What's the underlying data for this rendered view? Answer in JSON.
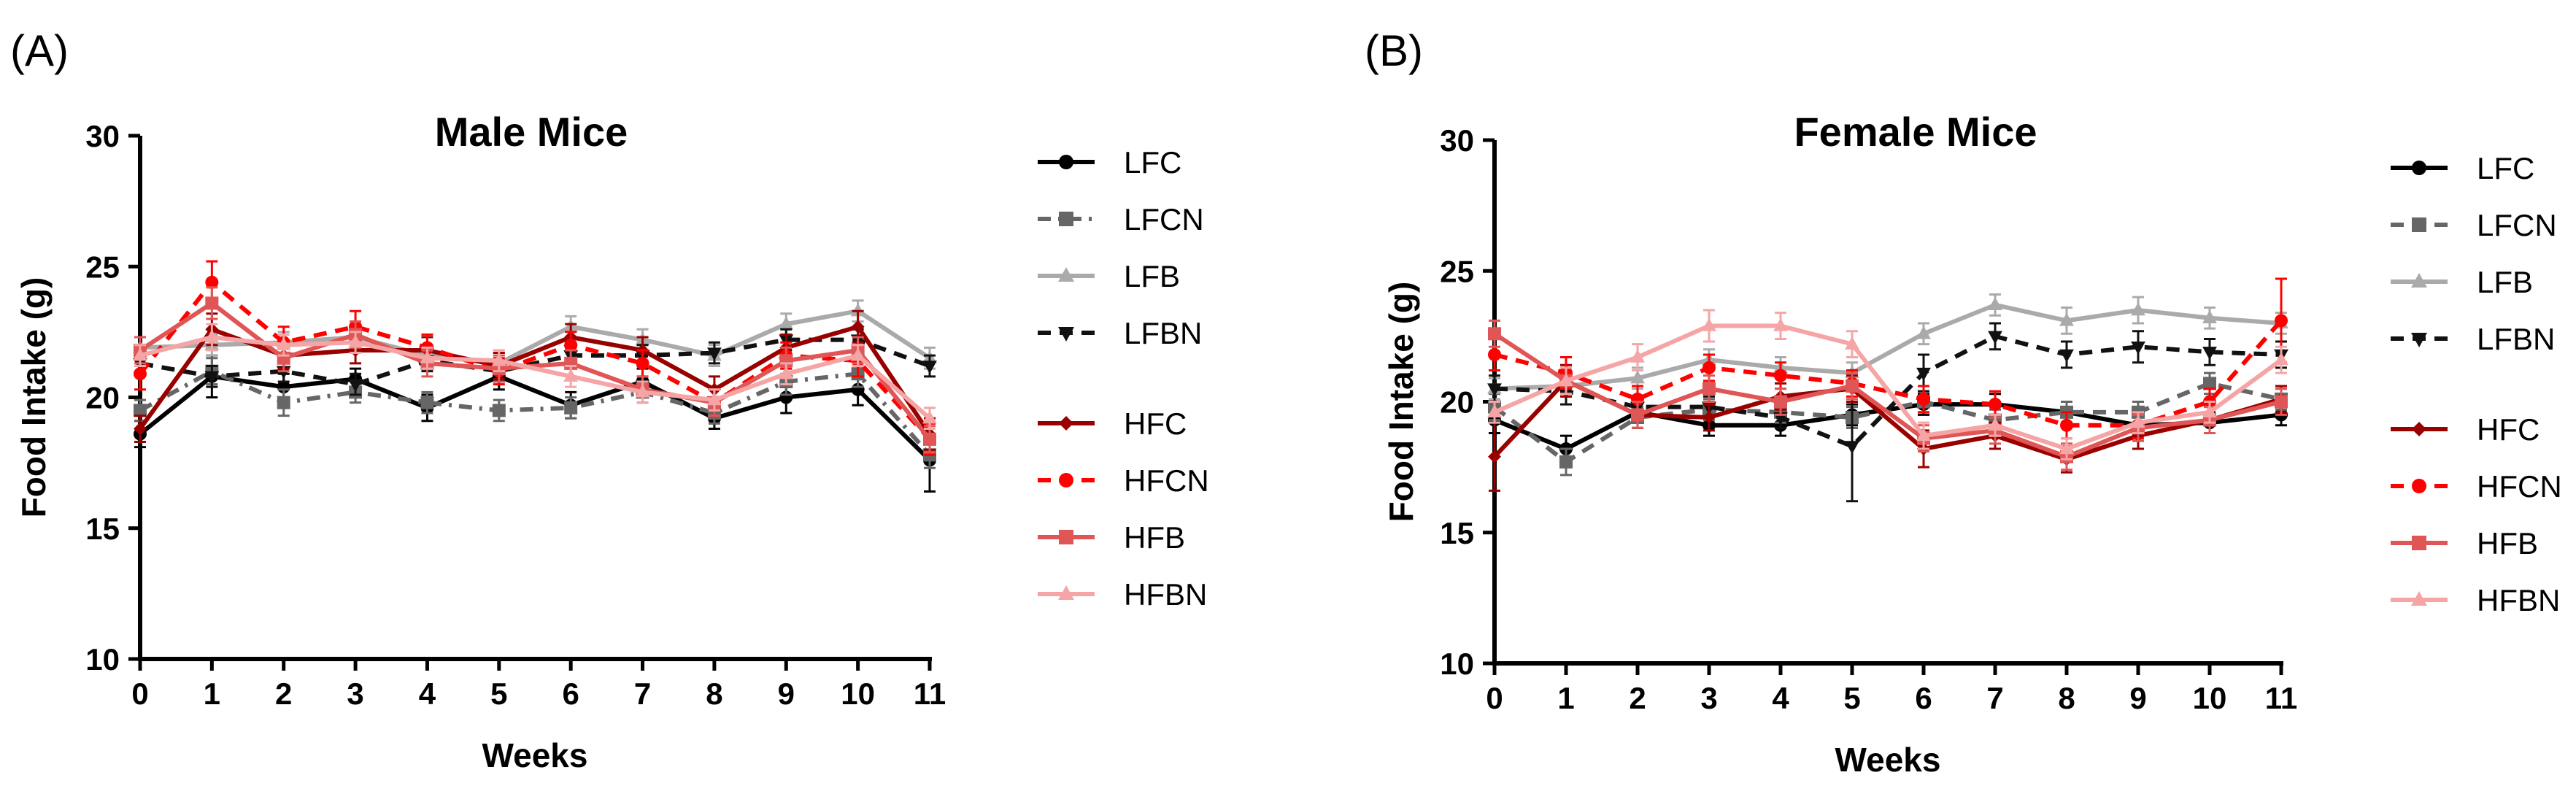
{
  "chart_data": [
    {
      "panel": "(A)",
      "type": "line",
      "title": "Male Mice",
      "xlabel": "Weeks",
      "ylabel": "Food Intake (g)",
      "x": [
        0,
        1,
        2,
        3,
        4,
        5,
        6,
        7,
        8,
        9,
        10,
        11
      ],
      "ylim": [
        10,
        30
      ],
      "yticks": [
        10,
        15,
        20,
        25,
        30
      ],
      "series": [
        {
          "name": "LFC",
          "color": "#000000",
          "dash": "solid",
          "marker": "circle",
          "values": [
            18.6,
            20.8,
            20.4,
            20.7,
            19.6,
            20.8,
            19.7,
            20.6,
            19.2,
            20.0,
            20.3,
            17.6
          ],
          "err": [
            0.5,
            0.8,
            0.5,
            0.4,
            0.5,
            0.5,
            0.5,
            0.5,
            0.4,
            0.6,
            0.6,
            1.2
          ]
        },
        {
          "name": "LFCN",
          "color": "#666666",
          "dash": "dashdot",
          "marker": "square",
          "values": [
            19.5,
            21.0,
            19.8,
            20.2,
            19.8,
            19.5,
            19.6,
            20.2,
            19.4,
            20.6,
            20.9,
            17.8
          ],
          "err": [
            0.4,
            0.5,
            0.5,
            0.4,
            0.4,
            0.4,
            0.4,
            0.4,
            0.4,
            0.5,
            0.5,
            0.5
          ]
        },
        {
          "name": "LFB",
          "color": "#aaaaaa",
          "dash": "solid",
          "marker": "triangle",
          "values": [
            21.9,
            22.0,
            22.1,
            22.3,
            21.6,
            21.3,
            22.7,
            22.2,
            21.6,
            22.8,
            23.3,
            21.5
          ],
          "err": [
            0.4,
            0.4,
            0.4,
            0.4,
            0.4,
            0.4,
            0.4,
            0.4,
            0.4,
            0.4,
            0.4,
            0.4
          ]
        },
        {
          "name": "LFBN",
          "color": "#111111",
          "dash": "dash",
          "marker": "triangle-down",
          "values": [
            21.3,
            20.8,
            21.0,
            20.5,
            21.4,
            21.0,
            21.6,
            21.6,
            21.7,
            22.2,
            22.2,
            21.2
          ],
          "err": [
            0.4,
            0.4,
            0.4,
            0.4,
            0.4,
            0.4,
            0.4,
            0.4,
            0.4,
            0.4,
            0.4,
            0.4
          ]
        },
        {
          "name": "HFC",
          "color": "#990000",
          "dash": "solid",
          "marker": "diamond",
          "values": [
            18.8,
            22.6,
            21.6,
            21.8,
            21.8,
            21.2,
            22.3,
            21.8,
            20.3,
            21.9,
            22.7,
            18.6
          ],
          "err": [
            0.5,
            0.6,
            0.5,
            0.5,
            0.5,
            0.5,
            0.5,
            0.5,
            0.5,
            0.5,
            0.6,
            0.6
          ]
        },
        {
          "name": "HFCN",
          "color": "#ff0000",
          "dash": "dash",
          "marker": "circle",
          "values": [
            20.9,
            24.4,
            22.1,
            22.7,
            21.9,
            21.0,
            22.0,
            21.3,
            19.8,
            21.6,
            21.4,
            18.4
          ],
          "err": [
            0.6,
            0.8,
            0.6,
            0.6,
            0.5,
            0.5,
            0.5,
            0.5,
            0.5,
            0.5,
            0.6,
            0.6
          ]
        },
        {
          "name": "HFB",
          "color": "#e05555",
          "dash": "solid",
          "marker": "square",
          "values": [
            21.8,
            23.6,
            21.5,
            22.4,
            21.3,
            21.1,
            21.3,
            20.3,
            19.8,
            21.4,
            21.8,
            18.4
          ],
          "err": [
            0.5,
            0.6,
            0.5,
            0.5,
            0.5,
            0.5,
            0.5,
            0.5,
            0.5,
            0.5,
            0.5,
            0.5
          ]
        },
        {
          "name": "HFBN",
          "color": "#f5a5a5",
          "dash": "solid",
          "marker": "triangle",
          "values": [
            21.6,
            22.3,
            22.0,
            22.1,
            21.5,
            21.4,
            20.8,
            20.2,
            19.9,
            20.9,
            21.6,
            19.2
          ],
          "err": [
            0.4,
            0.5,
            0.4,
            0.4,
            0.4,
            0.4,
            0.4,
            0.4,
            0.4,
            0.4,
            0.4,
            0.4
          ]
        }
      ]
    },
    {
      "panel": "(B)",
      "type": "line",
      "title": "Female Mice",
      "xlabel": "Weeks",
      "ylabel": "Food Intake (g)",
      "x": [
        0,
        1,
        2,
        3,
        4,
        5,
        6,
        7,
        8,
        9,
        10,
        11
      ],
      "ylim": [
        10,
        30
      ],
      "yticks": [
        10,
        15,
        20,
        25,
        30
      ],
      "series": [
        {
          "name": "LFC",
          "color": "#000000",
          "dash": "solid",
          "marker": "circle",
          "values": [
            19.3,
            18.2,
            19.6,
            19.1,
            19.1,
            19.5,
            19.9,
            19.9,
            19.6,
            19.1,
            19.2,
            19.5
          ],
          "err": [
            0.5,
            0.5,
            0.4,
            0.4,
            0.4,
            0.4,
            0.4,
            0.4,
            0.4,
            0.4,
            0.4,
            0.4
          ]
        },
        {
          "name": "LFCN",
          "color": "#666666",
          "dash": "dash",
          "marker": "square",
          "values": [
            19.8,
            17.7,
            19.4,
            19.7,
            19.6,
            19.4,
            20.0,
            19.3,
            19.6,
            19.6,
            20.7,
            20.1
          ],
          "err": [
            0.5,
            0.5,
            0.4,
            0.4,
            0.4,
            0.4,
            0.4,
            0.4,
            0.4,
            0.4,
            0.4,
            0.4
          ]
        },
        {
          "name": "LFB",
          "color": "#aaaaaa",
          "dash": "solid",
          "marker": "triangle",
          "values": [
            20.5,
            20.6,
            20.9,
            21.6,
            21.3,
            21.1,
            22.6,
            23.7,
            23.1,
            23.5,
            23.2,
            23.0
          ],
          "err": [
            0.4,
            0.4,
            0.4,
            0.4,
            0.4,
            0.4,
            0.4,
            0.4,
            0.5,
            0.5,
            0.4,
            0.4
          ]
        },
        {
          "name": "LFBN",
          "color": "#111111",
          "dash": "dash",
          "marker": "triangle-down",
          "values": [
            20.5,
            20.4,
            19.8,
            19.8,
            19.4,
            18.3,
            21.1,
            22.5,
            21.8,
            22.1,
            21.9,
            21.8
          ],
          "err": [
            0.5,
            0.5,
            0.4,
            0.4,
            0.4,
            2.1,
            0.7,
            0.5,
            0.5,
            0.6,
            0.5,
            0.5
          ]
        },
        {
          "name": "HFC",
          "color": "#990000",
          "dash": "solid",
          "marker": "diamond",
          "values": [
            17.9,
            20.8,
            19.5,
            19.4,
            20.2,
            20.5,
            18.2,
            18.7,
            17.8,
            18.7,
            19.3,
            20.1
          ],
          "err": [
            1.3,
            0.6,
            0.5,
            0.5,
            0.5,
            0.5,
            0.7,
            0.5,
            0.5,
            0.5,
            0.5,
            0.5
          ]
        },
        {
          "name": "HFCN",
          "color": "#ff0000",
          "dash": "dash",
          "marker": "circle",
          "values": [
            21.8,
            21.1,
            20.1,
            21.3,
            21.0,
            20.7,
            20.1,
            19.9,
            19.1,
            19.1,
            20.0,
            23.1
          ],
          "err": [
            0.6,
            0.6,
            0.5,
            0.5,
            0.5,
            0.5,
            0.5,
            0.5,
            0.5,
            0.5,
            0.5,
            1.6
          ]
        },
        {
          "name": "HFB",
          "color": "#e05555",
          "dash": "solid",
          "marker": "square",
          "values": [
            22.6,
            20.8,
            19.5,
            20.5,
            20.0,
            20.6,
            18.6,
            18.9,
            17.9,
            19.0,
            19.3,
            20.0
          ],
          "err": [
            0.5,
            0.5,
            0.5,
            0.5,
            0.5,
            0.5,
            0.5,
            0.5,
            0.5,
            0.5,
            0.5,
            0.5
          ]
        },
        {
          "name": "HFBN",
          "color": "#f5a5a5",
          "dash": "solid",
          "marker": "triangle",
          "values": [
            19.6,
            20.8,
            21.7,
            22.9,
            22.9,
            22.2,
            18.7,
            19.1,
            18.2,
            19.2,
            19.6,
            21.6
          ],
          "err": [
            0.4,
            0.5,
            0.5,
            0.6,
            0.5,
            0.5,
            0.5,
            0.4,
            0.4,
            0.4,
            0.4,
            0.5
          ]
        }
      ]
    }
  ]
}
